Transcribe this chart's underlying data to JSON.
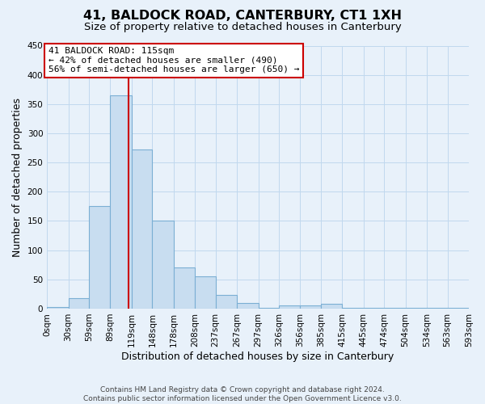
{
  "title": "41, BALDOCK ROAD, CANTERBURY, CT1 1XH",
  "subtitle": "Size of property relative to detached houses in Canterbury",
  "xlabel": "Distribution of detached houses by size in Canterbury",
  "ylabel": "Number of detached properties",
  "bin_edges": [
    0,
    30,
    59,
    89,
    119,
    148,
    178,
    208,
    237,
    267,
    297,
    326,
    356,
    385,
    415,
    445,
    474,
    504,
    534,
    563,
    593
  ],
  "bin_labels": [
    "0sqm",
    "30sqm",
    "59sqm",
    "89sqm",
    "119sqm",
    "148sqm",
    "178sqm",
    "208sqm",
    "237sqm",
    "267sqm",
    "297sqm",
    "326sqm",
    "356sqm",
    "385sqm",
    "415sqm",
    "445sqm",
    "474sqm",
    "504sqm",
    "534sqm",
    "563sqm",
    "593sqm"
  ],
  "bar_heights": [
    3,
    18,
    175,
    365,
    272,
    150,
    70,
    55,
    23,
    10,
    2,
    5,
    6,
    8,
    2,
    1,
    1,
    1,
    1,
    1
  ],
  "bar_color": "#c8ddf0",
  "bar_edge_color": "#7bafd4",
  "property_line_x": 115,
  "property_line_color": "#cc0000",
  "annotation_title": "41 BALDOCK ROAD: 115sqm",
  "annotation_line1": "← 42% of detached houses are smaller (490)",
  "annotation_line2": "56% of semi-detached houses are larger (650) →",
  "annotation_box_color": "#cc0000",
  "ylim": [
    0,
    450
  ],
  "yticks": [
    0,
    50,
    100,
    150,
    200,
    250,
    300,
    350,
    400,
    450
  ],
  "footer1": "Contains HM Land Registry data © Crown copyright and database right 2024.",
  "footer2": "Contains public sector information licensed under the Open Government Licence v3.0.",
  "bg_color": "#e8f1fa",
  "title_fontsize": 11.5,
  "subtitle_fontsize": 9.5,
  "axis_label_fontsize": 9,
  "tick_fontsize": 7.5,
  "footer_fontsize": 6.5
}
